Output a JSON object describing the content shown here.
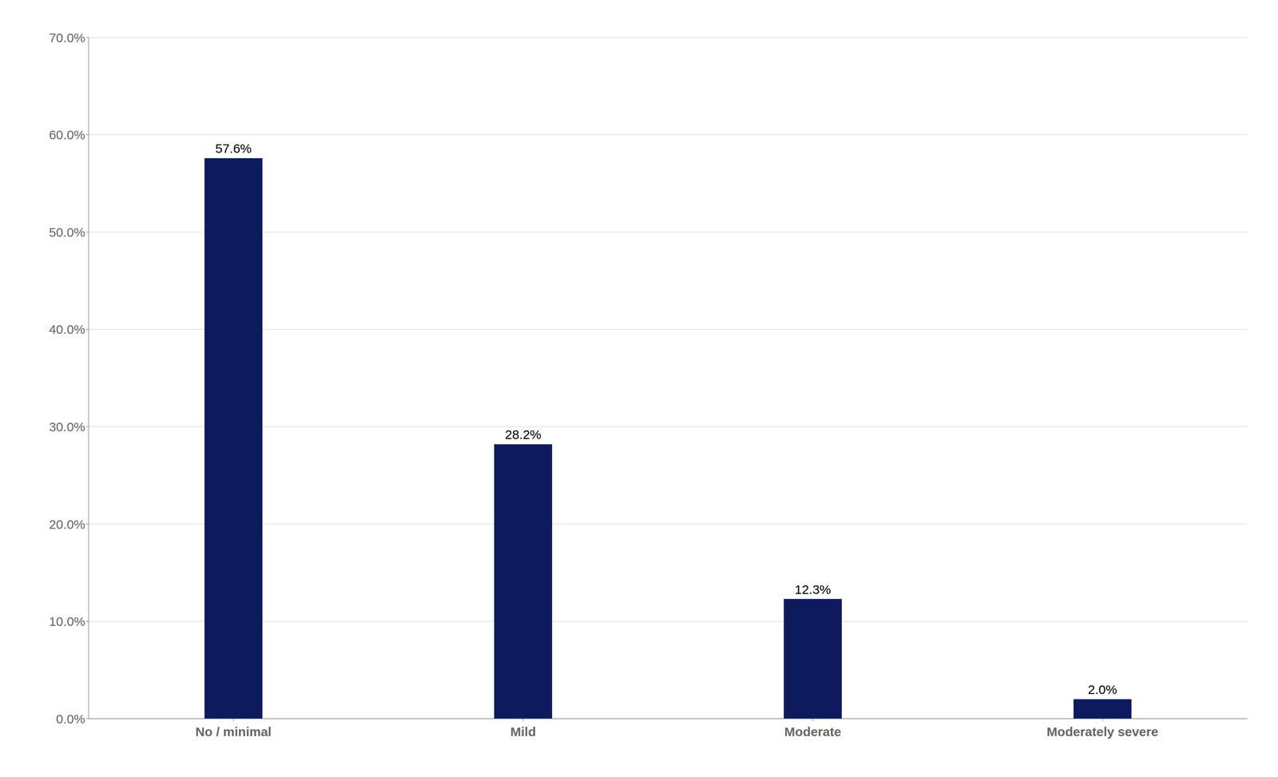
{
  "chart_data": {
    "type": "bar",
    "categories": [
      "No / minimal",
      "Mild",
      "Moderate",
      "Moderately severe"
    ],
    "values": [
      57.6,
      28.2,
      12.3,
      2.0
    ],
    "value_labels": [
      "57.6%",
      "28.2%",
      "12.3%",
      "2.0%"
    ],
    "data_labels": true,
    "color": "#0D1B5E",
    "ylim": [
      0,
      70
    ],
    "yticks": [
      {
        "value": 0,
        "label": "0.0%"
      },
      {
        "value": 10,
        "label": "10.0%"
      },
      {
        "value": 20,
        "label": "20.0%"
      },
      {
        "value": 30,
        "label": "30.0%"
      },
      {
        "value": 40,
        "label": "40.0%"
      },
      {
        "value": 50,
        "label": "50.0%"
      },
      {
        "value": 60,
        "label": "60.0%"
      },
      {
        "value": 70,
        "label": "70.0%"
      }
    ],
    "grid": true
  }
}
